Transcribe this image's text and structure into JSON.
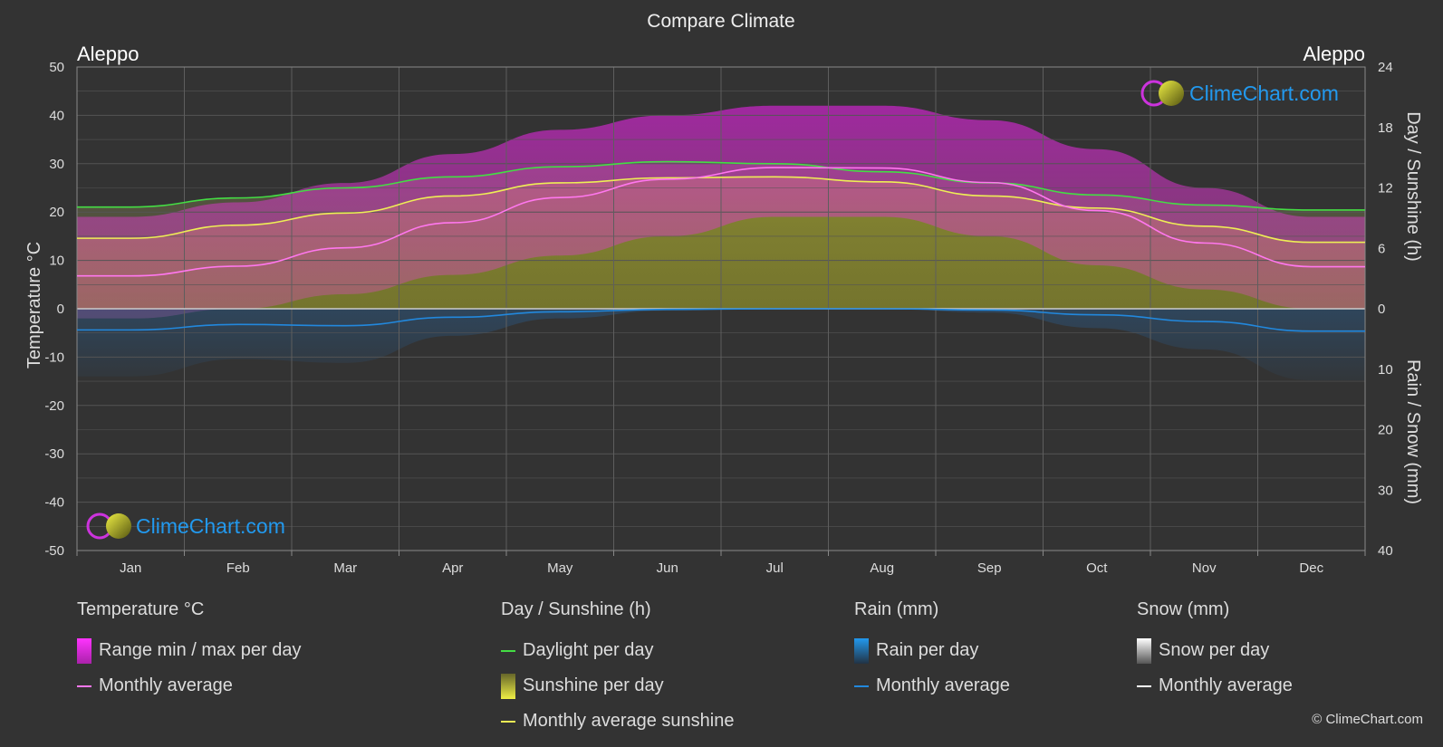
{
  "title": "Compare Climate",
  "location_left": "Aleppo",
  "location_right": "Aleppo",
  "brand": "ClimeChart.com",
  "copyright": "© ClimeChart.com",
  "colors": {
    "background": "#333333",
    "daylight": "#44dd44",
    "sunshine_avg": "#eeee55",
    "temp_avg": "#ff77ee",
    "rain_avg": "#2288dd",
    "range_fill": "#dd33dd",
    "sunshine_fill": "#9a9a2a",
    "rain_fill": "#2a5a88",
    "brand": "#2299ee"
  },
  "chart_data": {
    "type": "area",
    "categories": [
      "Jan",
      "Feb",
      "Mar",
      "Apr",
      "May",
      "Jun",
      "Jul",
      "Aug",
      "Sep",
      "Oct",
      "Nov",
      "Dec"
    ],
    "y_left": {
      "label": "Temperature °C",
      "ticks": [
        "50",
        "40",
        "30",
        "20",
        "10",
        "0",
        "-10",
        "-20",
        "-30",
        "-40",
        "-50"
      ],
      "range": [
        -50,
        50
      ]
    },
    "y_right_top": {
      "label": "Day / Sunshine (h)",
      "ticks": [
        "24",
        "18",
        "12",
        "6",
        "0"
      ],
      "range": [
        0,
        24
      ]
    },
    "y_right_bottom": {
      "label": "Rain / Snow (mm)",
      "ticks": [
        "0",
        "10",
        "20",
        "30",
        "40"
      ],
      "range": [
        0,
        40
      ]
    },
    "series": [
      {
        "name": "Daylight per day",
        "unit": "h",
        "values": [
          10.1,
          11.0,
          12.0,
          13.1,
          14.1,
          14.6,
          14.4,
          13.6,
          12.5,
          11.3,
          10.3,
          9.8
        ]
      },
      {
        "name": "Monthly average sunshine",
        "unit": "h",
        "values": [
          7.0,
          8.3,
          9.5,
          11.2,
          12.5,
          13.0,
          13.1,
          12.6,
          11.2,
          10.0,
          8.2,
          6.6
        ]
      },
      {
        "name": "Monthly average",
        "unit": "°C",
        "values": [
          6.8,
          8.8,
          12.6,
          17.8,
          23.0,
          26.8,
          29.2,
          29.1,
          26.1,
          20.3,
          13.6,
          8.7
        ]
      },
      {
        "name": "Range max per day",
        "unit": "°C",
        "values": [
          19,
          22,
          26,
          32,
          37,
          40,
          42,
          42,
          39,
          33,
          25,
          19
        ]
      },
      {
        "name": "Range min per day",
        "unit": "°C",
        "values": [
          -2,
          0,
          3,
          7,
          11,
          15,
          19,
          19,
          15,
          9,
          4,
          0
        ]
      },
      {
        "name": "Rain monthly average",
        "unit": "mm",
        "values": [
          3.5,
          2.6,
          2.8,
          1.4,
          0.5,
          0.1,
          0.0,
          0.0,
          0.2,
          1.0,
          2.1,
          3.7
        ]
      }
    ]
  },
  "legend": {
    "temperature": {
      "title": "Temperature °C",
      "items": [
        "Range min / max per day",
        "Monthly average"
      ]
    },
    "sunshine": {
      "title": "Day / Sunshine (h)",
      "items": [
        "Daylight per day",
        "Sunshine per day",
        "Monthly average sunshine"
      ]
    },
    "rain": {
      "title": "Rain (mm)",
      "items": [
        "Rain per day",
        "Monthly average"
      ]
    },
    "snow": {
      "title": "Snow (mm)",
      "items": [
        "Snow per day",
        "Monthly average"
      ]
    }
  }
}
